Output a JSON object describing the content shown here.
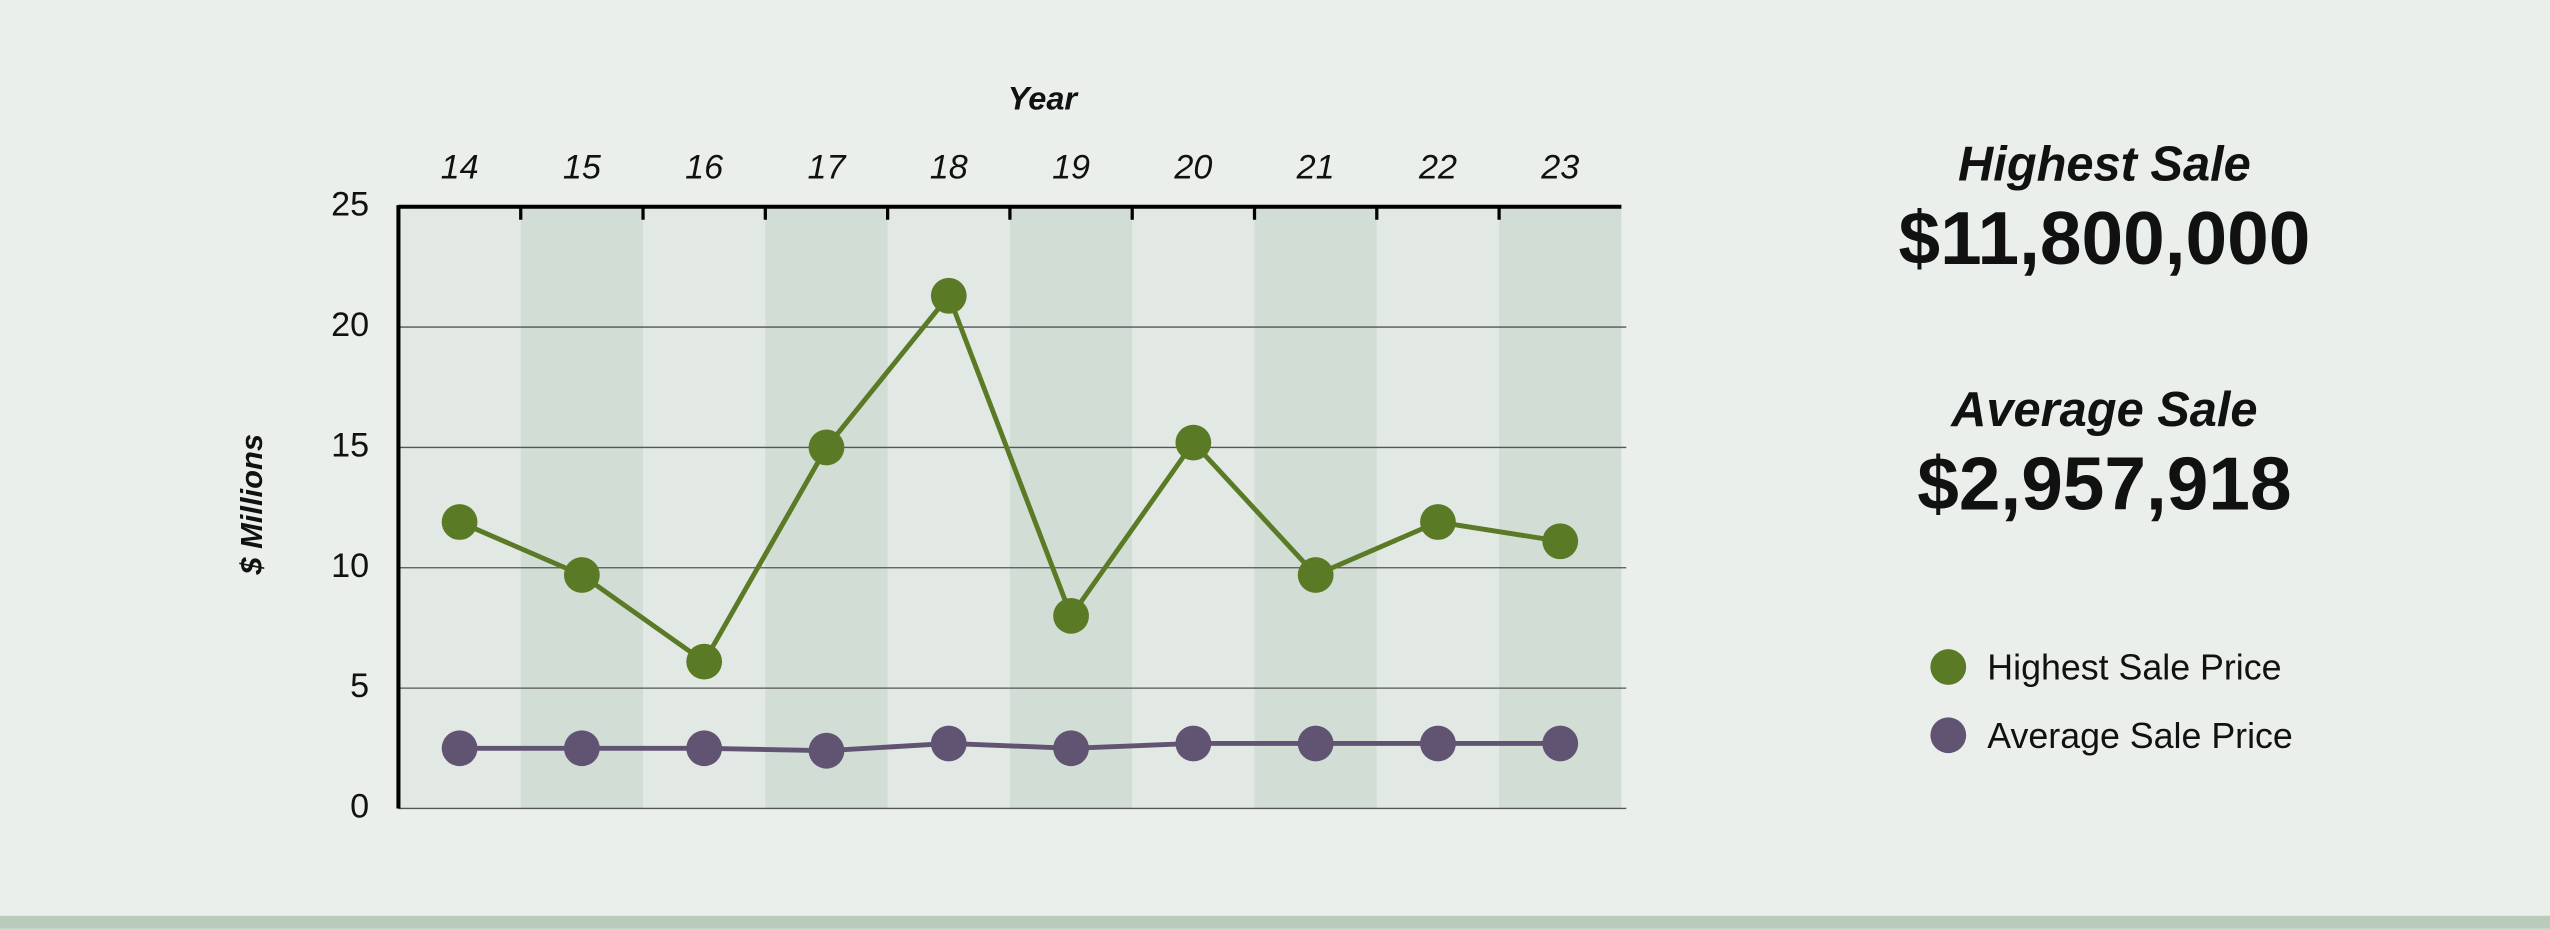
{
  "chart_data": {
    "type": "line",
    "x_label": "Year",
    "y_label": "$ Millions",
    "categories": [
      "14",
      "15",
      "16",
      "17",
      "18",
      "19",
      "20",
      "21",
      "22",
      "23"
    ],
    "series": [
      {
        "name": "Highest Sale Price",
        "color": "#5a7a26",
        "values": [
          11.9,
          9.7,
          6.1,
          15.0,
          21.3,
          8.0,
          15.2,
          9.7,
          11.9,
          11.1
        ]
      },
      {
        "name": "Average Sale Price",
        "color": "#615473",
        "values": [
          2.5,
          2.5,
          2.5,
          2.4,
          2.7,
          2.5,
          2.7,
          2.7,
          2.7,
          2.7
        ]
      }
    ],
    "ylim": [
      0,
      25
    ],
    "yticks": [
      0,
      5,
      10,
      15,
      20,
      25
    ],
    "grid": true,
    "x_axis_position": "top",
    "legend": "right"
  },
  "summary": [
    {
      "label": "Highest Sale",
      "value": "$11,800,000"
    },
    {
      "label": "Average Sale",
      "value": "$2,957,918"
    }
  ]
}
